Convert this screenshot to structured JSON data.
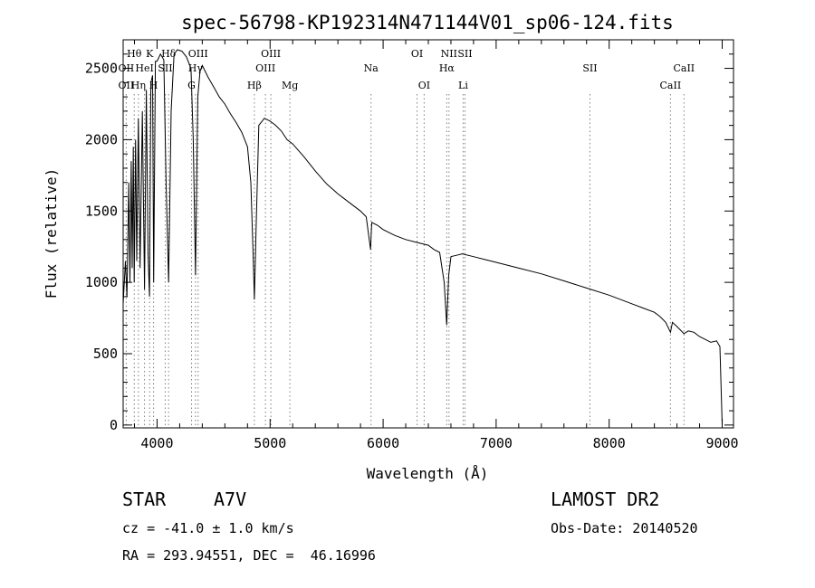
{
  "chart_data": {
    "type": "line",
    "title": "spec-56798-KP192314N471144V01_sp06-124.fits",
    "xlabel": "Wavelength (Å)",
    "ylabel": "Flux (relative)",
    "xlim": [
      3700,
      9100
    ],
    "ylim": [
      -20,
      2700
    ],
    "xticks": [
      4000,
      5000,
      6000,
      7000,
      8000,
      9000
    ],
    "yticks": [
      0,
      500,
      1000,
      1500,
      2000,
      2500
    ],
    "grid": false,
    "line_color": "#000000",
    "marker_color": "#808080",
    "series": [
      {
        "x": [
          3700,
          3720,
          3734,
          3750,
          3760,
          3771,
          3780,
          3790,
          3798,
          3810,
          3820,
          3835,
          3850,
          3870,
          3889,
          3905,
          3920,
          3933,
          3945,
          3960,
          3970,
          3985,
          4000,
          4030,
          4060,
          4080,
          4102,
          4125,
          4150,
          4180,
          4220,
          4260,
          4300,
          4320,
          4340,
          4360,
          4380,
          4400,
          4450,
          4500,
          4550,
          4600,
          4650,
          4700,
          4750,
          4800,
          4830,
          4850,
          4861,
          4875,
          4900,
          4950,
          5000,
          5050,
          5100,
          5150,
          5200,
          5300,
          5400,
          5500,
          5600,
          5700,
          5800,
          5850,
          5889,
          5895,
          5900,
          5950,
          6000,
          6100,
          6200,
          6300,
          6400,
          6450,
          6500,
          6540,
          6563,
          6580,
          6600,
          6650,
          6700,
          6800,
          6900,
          7000,
          7200,
          7400,
          7600,
          7800,
          8000,
          8200,
          8300,
          8400,
          8450,
          8500,
          8542,
          8560,
          8600,
          8662,
          8700,
          8750,
          8800,
          8850,
          8900,
          8950,
          8980,
          9000
        ],
        "y": [
          850,
          1150,
          900,
          1700,
          1000,
          1850,
          1100,
          1950,
          1000,
          2000,
          1150,
          2150,
          1100,
          2200,
          950,
          2350,
          1200,
          900,
          2400,
          2450,
          1000,
          2550,
          2550,
          2600,
          2560,
          1700,
          1000,
          2200,
          2600,
          2630,
          2620,
          2580,
          2500,
          2000,
          1050,
          2300,
          2480,
          2520,
          2440,
          2370,
          2300,
          2250,
          2180,
          2120,
          2050,
          1950,
          1700,
          1200,
          880,
          1350,
          2100,
          2150,
          2130,
          2100,
          2060,
          2000,
          1970,
          1880,
          1780,
          1690,
          1620,
          1560,
          1500,
          1460,
          1230,
          1350,
          1420,
          1400,
          1370,
          1330,
          1300,
          1280,
          1260,
          1230,
          1210,
          1000,
          700,
          1050,
          1180,
          1190,
          1200,
          1180,
          1160,
          1140,
          1100,
          1060,
          1010,
          960,
          910,
          850,
          820,
          790,
          760,
          720,
          650,
          720,
          690,
          640,
          660,
          650,
          620,
          600,
          580,
          590,
          550,
          0
        ]
      }
    ],
    "line_markers": [
      {
        "label": "Hθ",
        "x": 3798,
        "row": 1
      },
      {
        "label": "OII",
        "x": 3727,
        "row": 2
      },
      {
        "label": "OII",
        "x": 3727,
        "row": 3
      },
      {
        "label": "K",
        "x": 3934,
        "row": 1
      },
      {
        "label": "HeI",
        "x": 3889,
        "row": 2
      },
      {
        "label": "Hη",
        "x": 3835,
        "row": 3
      },
      {
        "label": "H",
        "x": 3969,
        "row": 3
      },
      {
        "label": "Hδ",
        "x": 4102,
        "row": 1
      },
      {
        "label": "SII",
        "x": 4072,
        "row": 2
      },
      {
        "label": "OIII",
        "x": 4363,
        "row": 1
      },
      {
        "label": "Hγ",
        "x": 4340,
        "row": 2
      },
      {
        "label": "G",
        "x": 4305,
        "row": 3
      },
      {
        "label": "Hβ",
        "x": 4861,
        "row": 3
      },
      {
        "label": "OIII",
        "x": 5007,
        "row": 1
      },
      {
        "label": "OIII",
        "x": 4959,
        "row": 2
      },
      {
        "label": "Mg",
        "x": 5175,
        "row": 3
      },
      {
        "label": "Na",
        "x": 5893,
        "row": 2
      },
      {
        "label": "OI",
        "x": 6300,
        "row": 1
      },
      {
        "label": "OI",
        "x": 6363,
        "row": 3
      },
      {
        "label": "NII",
        "x": 6583,
        "row": 1
      },
      {
        "label": "Hα",
        "x": 6563,
        "row": 2
      },
      {
        "label": "SII",
        "x": 6724,
        "row": 1
      },
      {
        "label": "Li",
        "x": 6708,
        "row": 3
      },
      {
        "label": "SII",
        "x": 7830,
        "row": 2
      },
      {
        "label": "CaII",
        "x": 8662,
        "row": 2
      },
      {
        "label": "CaII",
        "x": 8542,
        "row": 3
      }
    ]
  },
  "footer": {
    "class_label": "STAR",
    "subclass": "A7V",
    "survey": "LAMOST DR2",
    "redshift": "cz = -41.0 ± 1.0 km/s",
    "obs_date": "Obs-Date: 20140520",
    "coords": "RA = 293.94551, DEC =  46.16996"
  }
}
